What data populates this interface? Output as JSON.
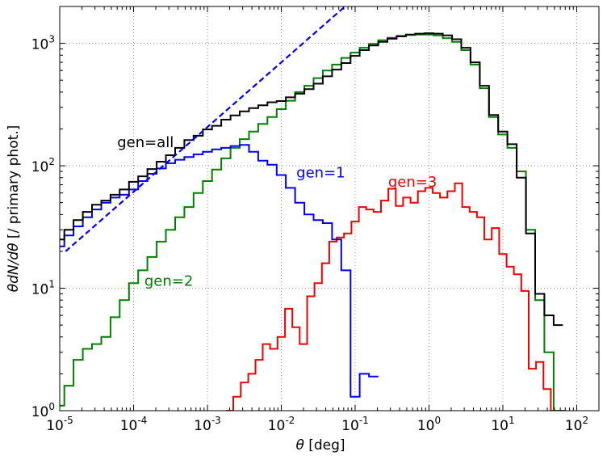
{
  "chart_data": {
    "type": "line",
    "title": "",
    "xlabel_symbol": "θ",
    "xlabel_unit": "[deg]",
    "ylabel_symbol": "θdN/dθ",
    "ylabel_unit": "[/ primary phot.]",
    "x_scale": "log",
    "y_scale": "log",
    "xlim": [
      1e-05,
      200
    ],
    "ylim": [
      1,
      2000
    ],
    "x_tick_labels": [
      "10",
      "10",
      "10",
      "10",
      "10",
      "10",
      "10",
      "10"
    ],
    "x_tick_exponents": [
      "-5",
      "-4",
      "-3",
      "-2",
      "-1",
      "0",
      "1",
      "2"
    ],
    "y_tick_labels": [
      "10",
      "10",
      "10",
      "10"
    ],
    "y_tick_exponents": [
      "0",
      "1",
      "2",
      "3"
    ],
    "grid": true,
    "colors": {
      "gen_all": "#000000",
      "gen_1": "#0000ee",
      "gen_2": "#007f00",
      "gen_3": "#ee0000",
      "fit": "#0000ee"
    },
    "fit_line": {
      "style": "dashed",
      "x": [
        1.2e-05,
        0.08
      ],
      "y": [
        20,
        2100
      ]
    },
    "series": [
      {
        "name": "gen=all",
        "label": "gen=all",
        "label_at": [
          6e-05,
          155
        ],
        "x": [
          1e-05,
          1.33e-05,
          1.78e-05,
          2.37e-05,
          3.16e-05,
          4.22e-05,
          5.62e-05,
          7.5e-05,
          0.0001,
          0.000133,
          0.000178,
          0.000237,
          0.000316,
          0.000422,
          0.000562,
          0.00075,
          0.001,
          0.00133,
          0.00178,
          0.00237,
          0.00316,
          0.00422,
          0.00562,
          0.0075,
          0.01,
          0.0133,
          0.0178,
          0.0237,
          0.0316,
          0.0422,
          0.0562,
          0.075,
          0.1,
          0.133,
          0.178,
          0.237,
          0.316,
          0.422,
          0.562,
          0.75,
          1.0,
          1.33,
          1.78,
          2.37,
          3.16,
          4.22,
          5.62,
          7.5,
          10.0,
          13.3,
          17.8,
          23.7,
          31.6,
          42.2,
          56.2
        ],
        "y": [
          25,
          30,
          36,
          42,
          48,
          52,
          58,
          64,
          74,
          82,
          94,
          108,
          122,
          140,
          162,
          176,
          198,
          212,
          238,
          258,
          278,
          296,
          312,
          330,
          338,
          362,
          388,
          422,
          468,
          538,
          610,
          690,
          790,
          880,
          960,
          1030,
          1090,
          1140,
          1180,
          1200,
          1210,
          1200,
          1160,
          1080,
          920,
          700,
          450,
          260,
          190,
          150,
          80,
          28,
          9,
          6,
          5
        ]
      },
      {
        "name": "gen=1",
        "label": "gen=1",
        "label_at": [
          0.016,
          88
        ],
        "x": [
          1e-05,
          1.33e-05,
          1.78e-05,
          2.37e-05,
          3.16e-05,
          4.22e-05,
          5.62e-05,
          7.5e-05,
          0.0001,
          0.000133,
          0.000178,
          0.000237,
          0.000316,
          0.000422,
          0.000562,
          0.00075,
          0.001,
          0.00133,
          0.00178,
          0.00237,
          0.00316,
          0.00422,
          0.00562,
          0.0075,
          0.01,
          0.0133,
          0.0178,
          0.0237,
          0.0316,
          0.0422,
          0.0562,
          0.075,
          0.1,
          0.133,
          0.178
        ],
        "y": [
          22,
          27,
          32,
          38,
          44,
          50,
          55,
          58,
          64,
          75,
          86,
          95,
          105,
          112,
          118,
          124,
          130,
          136,
          140,
          145,
          148,
          130,
          110,
          102,
          84,
          66,
          50,
          40,
          36,
          34,
          25,
          14,
          1.3,
          2,
          1.9
        ]
      },
      {
        "name": "gen=2",
        "label": "gen=2",
        "label_at": [
          0.00014,
          11.5
        ],
        "x": [
          1e-05,
          1.33e-05,
          1.78e-05,
          2.37e-05,
          3.16e-05,
          4.22e-05,
          5.62e-05,
          7.5e-05,
          0.0001,
          0.000133,
          0.000178,
          0.000237,
          0.000316,
          0.000422,
          0.000562,
          0.00075,
          0.001,
          0.00133,
          0.00178,
          0.00237,
          0.00316,
          0.00422,
          0.00562,
          0.0075,
          0.01,
          0.0133,
          0.0178,
          0.0237,
          0.0316,
          0.0422,
          0.0562,
          0.075,
          0.1,
          0.133,
          0.178,
          0.237,
          0.316,
          0.422,
          0.562,
          0.75,
          1.0,
          1.33,
          1.78,
          2.37,
          3.16,
          4.22,
          5.62,
          7.5,
          10.0,
          13.3,
          17.8,
          23.7,
          31.6,
          42.2,
          56.2
        ],
        "y": [
          1.1,
          1.6,
          2.6,
          3.2,
          3.5,
          4.0,
          5.8,
          8.0,
          11,
          14,
          18,
          24,
          30,
          38,
          46,
          60,
          75,
          93,
          115,
          140,
          165,
          190,
          220,
          250,
          290,
          340,
          400,
          450,
          520,
          600,
          670,
          760,
          840,
          920,
          990,
          1060,
          1110,
          1150,
          1170,
          1180,
          1180,
          1160,
          1100,
          1030,
          880,
          670,
          430,
          250,
          180,
          140,
          90,
          30,
          8,
          3,
          1
        ]
      },
      {
        "name": "gen=3",
        "label": "gen=3",
        "label_at": [
          0.28,
          74
        ],
        "x": [
          0.002,
          0.0025,
          0.0032,
          0.004,
          0.005,
          0.0063,
          0.0079,
          0.01,
          0.0126,
          0.0158,
          0.02,
          0.0251,
          0.0316,
          0.0398,
          0.0501,
          0.063,
          0.0794,
          0.1,
          0.126,
          0.158,
          0.2,
          0.251,
          0.316,
          0.398,
          0.501,
          0.631,
          0.794,
          1.0,
          1.26,
          1.58,
          2.0,
          2.51,
          3.16,
          3.98,
          5.01,
          6.31,
          7.94,
          10.0,
          12.6,
          15.8,
          20.0,
          25.1,
          31.6,
          39.8,
          50.1,
          63.1
        ],
        "y": [
          1,
          1.3,
          1.7,
          2.0,
          2.6,
          3.5,
          3.2,
          4.0,
          6.8,
          4.8,
          3.5,
          8.6,
          11,
          16,
          24,
          26,
          28,
          35,
          46,
          44,
          42,
          52,
          65,
          47,
          55,
          50,
          62,
          66,
          60,
          55,
          62,
          72,
          46,
          42,
          38,
          25,
          31,
          19,
          15,
          13,
          9.5,
          2.2,
          2.5,
          1.5,
          1.0,
          1.0
        ]
      }
    ]
  }
}
